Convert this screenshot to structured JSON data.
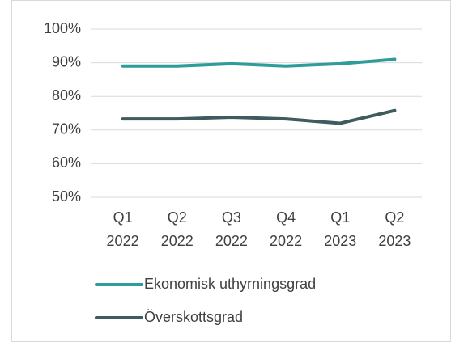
{
  "chart_data": {
    "type": "line",
    "categories": [
      "Q1 2022",
      "Q2 2022",
      "Q3 2022",
      "Q4 2022",
      "Q1 2023",
      "Q2 2023"
    ],
    "series": [
      {
        "name": "Ekonomisk uthyrningsgrad",
        "color": "#2e9c9a",
        "values": [
          89,
          89,
          89.7,
          89,
          89.7,
          91
        ]
      },
      {
        "name": "Överskottsgrad",
        "color": "#3e5b5d",
        "values": [
          73.3,
          73.3,
          73.8,
          73.3,
          72,
          75.8
        ]
      }
    ],
    "ylim": [
      50,
      100
    ],
    "yticks": [
      {
        "value": 50,
        "label": "50%"
      },
      {
        "value": 60,
        "label": "60%"
      },
      {
        "value": 70,
        "label": "70%"
      },
      {
        "value": 80,
        "label": "80%"
      },
      {
        "value": 90,
        "label": "90%"
      },
      {
        "value": 100,
        "label": "100%"
      }
    ],
    "grid": true,
    "legend": "bottom"
  }
}
